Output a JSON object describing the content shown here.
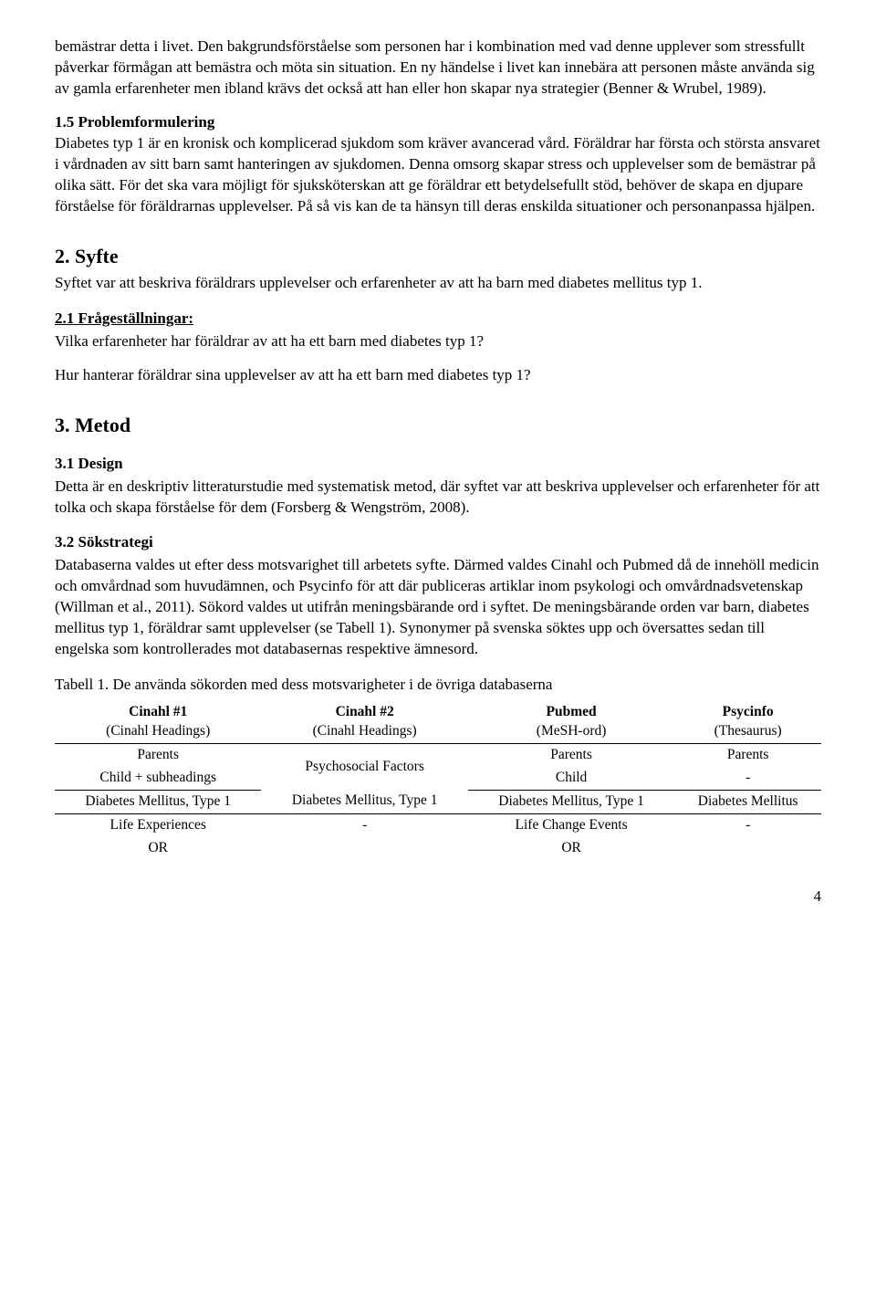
{
  "para_intro": "bemästrar detta i livet. Den bakgrundsförståelse som personen har i kombination med vad denne upplever som stressfullt påverkar förmågan att bemästra och möta sin situation. En ny händelse i livet kan innebära att personen måste använda sig av gamla erfarenheter men ibland krävs det också att han eller hon skapar nya strategier (Benner & Wrubel, 1989).",
  "sec15_title": "1.5 Problemformulering",
  "sec15_body": "Diabetes typ 1 är en kronisk och komplicerad sjukdom som kräver avancerad vård. Föräldrar har första och största ansvaret i vårdnaden av sitt barn samt hanteringen av sjukdomen. Denna omsorg skapar stress och upplevelser som de bemästrar på olika sätt. För det ska vara möjligt för sjuksköterskan att ge föräldrar ett betydelsefullt stöd, behöver de skapa en djupare förståelse för föräldrarnas upplevelser. På så vis kan de ta hänsyn till deras enskilda situationer och personanpassa hjälpen.",
  "sec2_heading": "2. Syfte",
  "sec2_body": "Syftet var att beskriva föräldrars upplevelser och erfarenheter av att ha barn med diabetes mellitus typ 1.",
  "sec21_title": "2.1 Frågeställningar:",
  "sec21_q1": "Vilka erfarenheter har föräldrar av att ha ett barn med diabetes typ 1?",
  "sec21_q2": "Hur hanterar föräldrar sina upplevelser av att ha ett barn med diabetes typ 1?",
  "sec3_heading": "3. Metod",
  "sec31_title": "3.1 Design",
  "sec31_body": "Detta är en deskriptiv litteraturstudie med systematisk metod, där syftet var att beskriva upplevelser och erfarenheter för att tolka och skapa förståelse för dem (Forsberg & Wengström, 2008).",
  "sec32_title": "3.2 Sökstrategi",
  "sec32_body": "Databaserna valdes ut efter dess motsvarighet till arbetets syfte. Därmed valdes Cinahl och Pubmed då de innehöll medicin och omvårdnad som huvudämnen, och Psycinfo för att där publiceras artiklar inom psykologi och omvårdnadsvetenskap (Willman et al., 2011). Sökord valdes ut utifrån meningsbärande ord i syftet. De meningsbärande orden var barn, diabetes mellitus typ 1, föräldrar samt upplevelser (se Tabell 1). Synonymer på svenska söktes upp och översattes sedan till engelska som kontrollerades mot databasernas respektive ämnesord.",
  "table1_caption": "Tabell 1.  De använda sökorden med dess motsvarigheter i de övriga databaserna",
  "table": {
    "headers": [
      {
        "title": "Cinahl #1",
        "sub": "(Cinahl Headings)"
      },
      {
        "title": "Cinahl #2",
        "sub": "(Cinahl Headings)"
      },
      {
        "title": "Pubmed",
        "sub": "(MeSH-ord)"
      },
      {
        "title": "Psycinfo",
        "sub": "(Thesaurus)"
      }
    ],
    "rows": [
      [
        "Parents",
        "Psychosocial Factors",
        "Parents",
        "Parents"
      ],
      [
        "Child + subheadings",
        "",
        "Child",
        "-"
      ],
      [
        "Diabetes Mellitus, Type 1",
        "Diabetes Mellitus, Type 1",
        "Diabetes Mellitus, Type 1",
        "Diabetes Mellitus"
      ],
      [
        "Life Experiences",
        "-",
        "Life Change Events",
        "-"
      ],
      [
        "OR",
        "",
        "OR",
        ""
      ]
    ]
  },
  "page_number": "4"
}
